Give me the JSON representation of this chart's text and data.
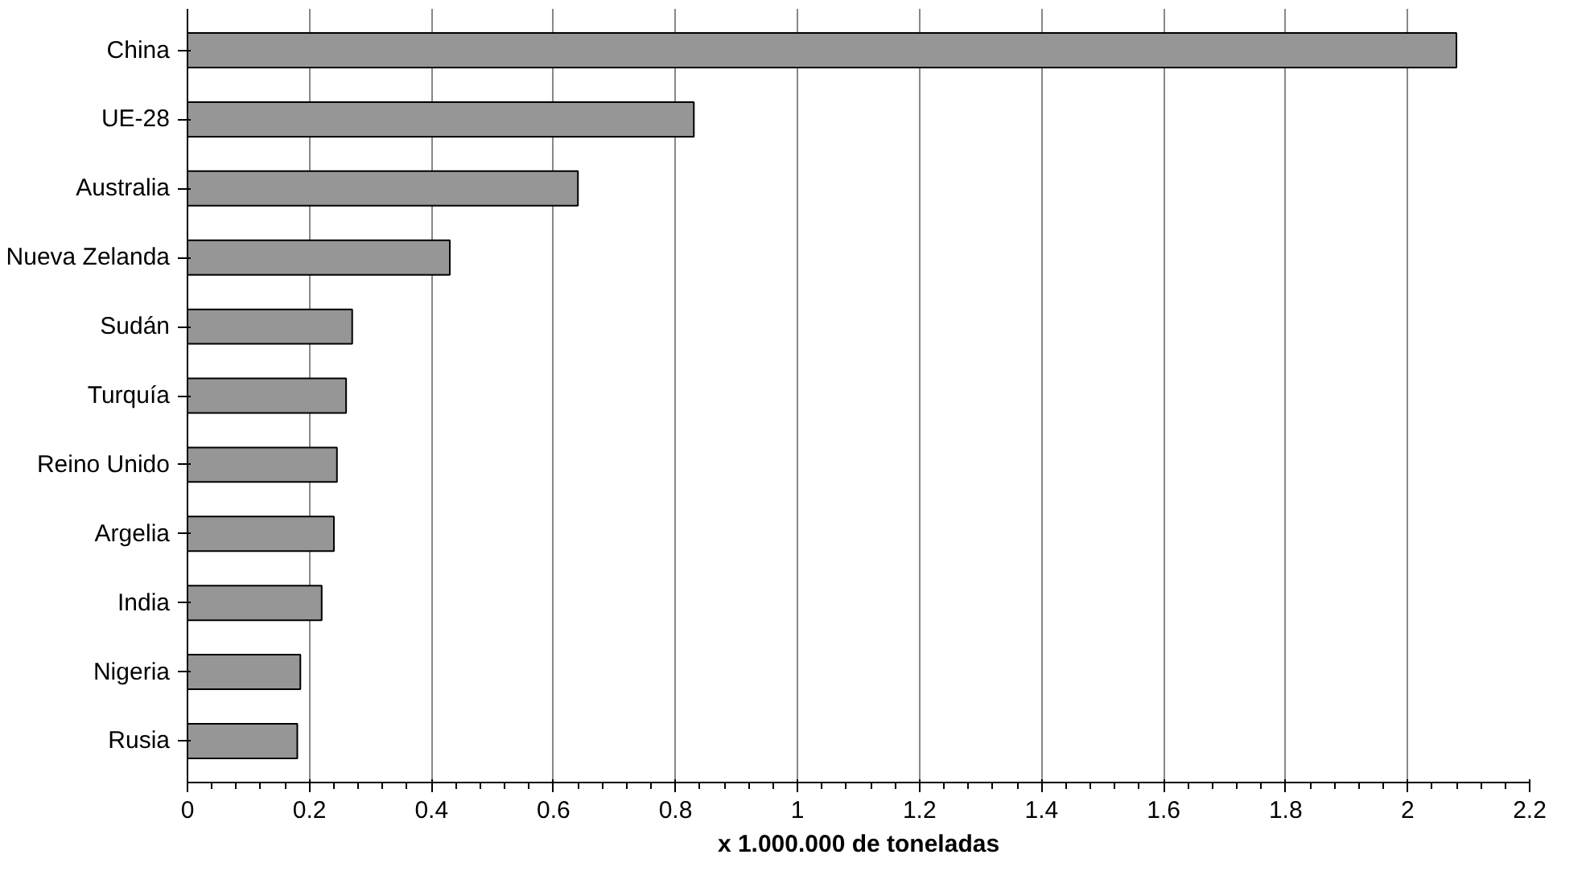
{
  "chart_data": {
    "type": "bar",
    "orientation": "horizontal",
    "xlabel": "x 1.000.000 de toneladas",
    "categories": [
      "China",
      "UE-28",
      "Australia",
      "Nueva Zelanda",
      "Sudán",
      "Turquía",
      "Reino Unido",
      "Argelia",
      "India",
      "Nigeria",
      "Rusia"
    ],
    "values": [
      2.08,
      0.83,
      0.64,
      0.43,
      0.27,
      0.26,
      0.245,
      0.24,
      0.22,
      0.185,
      0.18
    ],
    "color": "#969696",
    "xlim": [
      0,
      2.2
    ],
    "xticks": [
      0,
      0.2,
      0.4,
      0.6,
      0.8,
      1,
      1.2,
      1.4,
      1.6,
      1.8,
      2,
      2.2
    ],
    "grid": "x"
  }
}
